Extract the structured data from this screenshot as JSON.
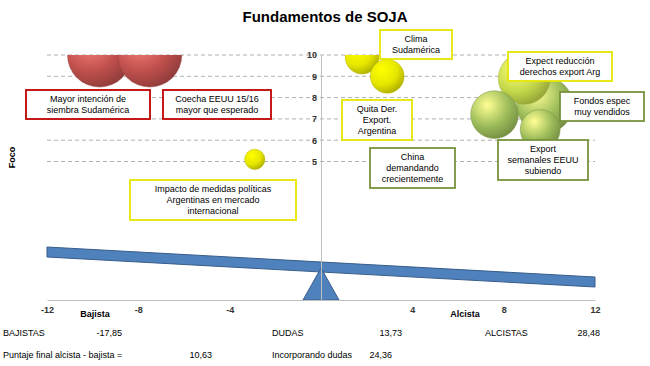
{
  "chart_data": {
    "type": "bubble",
    "title": "Fundamentos de SOJA",
    "y_label": "Foco",
    "x_labels": [
      "Bajista",
      "Alcista"
    ],
    "xlim": [
      -12,
      12
    ],
    "xticks": [
      -12,
      -8,
      -4,
      4,
      8,
      12
    ],
    "ylim": [
      -1.5,
      10
    ],
    "yticks": [
      5,
      6,
      7,
      8,
      9,
      10
    ],
    "grid": true,
    "points": [
      {
        "label": [
          "Mayor intención de",
          "siembra Sudamérica"
        ],
        "x": -9.7,
        "y": 10,
        "size": 9,
        "color": "#c0504d"
      },
      {
        "label": [
          "Coecha EEUU 15/16",
          "mayor que esperado"
        ],
        "x": -7.5,
        "y": 10,
        "size": 9,
        "color": "#c0504d"
      },
      {
        "label": [
          "Impacto de medidas políticas",
          "Argentinas en mercado",
          "internacional"
        ],
        "x": -2.9,
        "y": 5.1,
        "size": 0.9,
        "color": "#e6e600"
      },
      {
        "label": [
          "Clima",
          "Sudamérica"
        ],
        "x": 1.8,
        "y": 9.9,
        "size": 2.5,
        "color": "#e6e600"
      },
      {
        "label": [
          "Quita Der.",
          "Export.",
          "Argentina"
        ],
        "x": 2.9,
        "y": 9.0,
        "size": 2.5,
        "color": "#e6e600"
      },
      {
        "label": [
          "China",
          "demandando",
          "crecientemente"
        ],
        "x": 7.6,
        "y": 7.2,
        "size": 5,
        "color": "#9bbb59"
      },
      {
        "label": [
          "Expect reducción",
          "derechos export Arg"
        ],
        "x": 8.9,
        "y": 8.9,
        "size": 5.9,
        "color": "#c4d94a"
      },
      {
        "label": [
          "Fondos espec",
          "muy vendidos"
        ],
        "x": 9.8,
        "y": 7.65,
        "size": 6.9,
        "color": "#9bbb59"
      },
      {
        "label": [
          "Export",
          "semanales EEUU",
          "subiendo"
        ],
        "x": 9.6,
        "y": 6.5,
        "size": 3.5,
        "color": "#9bbb59"
      }
    ],
    "summary": [
      {
        "label": "BAJISTAS",
        "value": -17.85,
        "value_label": "-17,85"
      },
      {
        "label": "DUDAS",
        "value": 13.73,
        "value_label": "13,73"
      },
      {
        "label": "ALCISTAS",
        "value": 28.48,
        "value_label": "28,48"
      },
      {
        "label": "Puntaje final alcista - bajista =",
        "value": 10.63,
        "value_label": "10,63"
      },
      {
        "label": "Incorporando dudas",
        "value": 24.36,
        "value_label": "24,36"
      }
    ]
  }
}
